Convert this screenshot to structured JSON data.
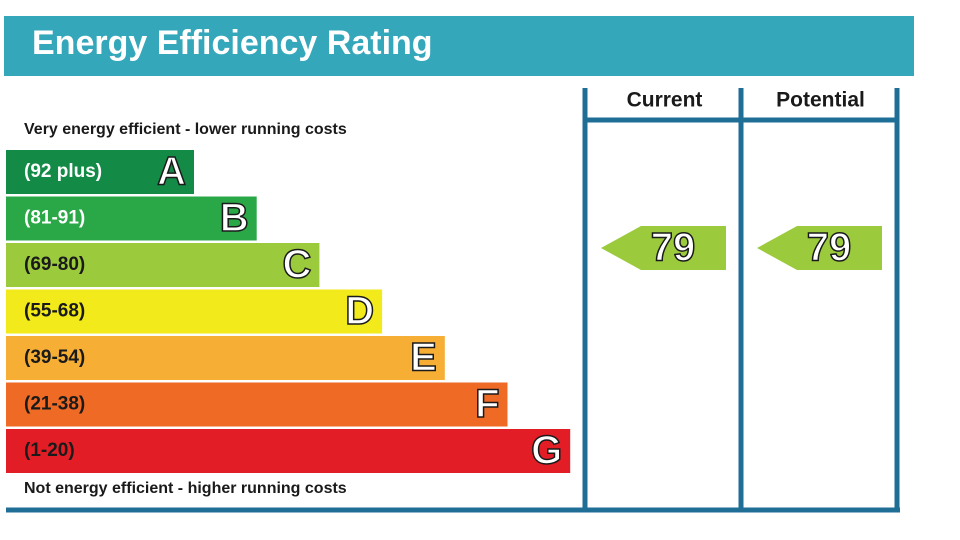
{
  "title": "Energy Efficiency Rating",
  "columns": [
    "Current",
    "Potential"
  ],
  "top_label": "Very energy efficient - lower running costs",
  "bottom_label": "Not energy efficient - higher running costs",
  "bands": [
    {
      "range": "(92 plus)",
      "letter": "A",
      "color": "#138a45",
      "text_color": "#ffffff"
    },
    {
      "range": "(81-91)",
      "letter": "B",
      "color": "#2aa848",
      "text_color": "#ffffff"
    },
    {
      "range": "(69-80)",
      "letter": "C",
      "color": "#9bcb3c",
      "text_color": "#1a1a1a"
    },
    {
      "range": "(55-68)",
      "letter": "D",
      "color": "#f2ea1a",
      "text_color": "#1a1a1a"
    },
    {
      "range": "(39-54)",
      "letter": "E",
      "color": "#f6ae35",
      "text_color": "#1a1a1a"
    },
    {
      "range": "(21-38)",
      "letter": "F",
      "color": "#ee6a25",
      "text_color": "#1a1a1a"
    },
    {
      "range": "(1-20)",
      "letter": "G",
      "color": "#e31d25",
      "text_color": "#1a1a1a"
    }
  ],
  "ratings": [
    {
      "value": "79",
      "color": "#9bcb3c"
    },
    {
      "value": "79",
      "color": "#9bcb3c"
    }
  ]
}
